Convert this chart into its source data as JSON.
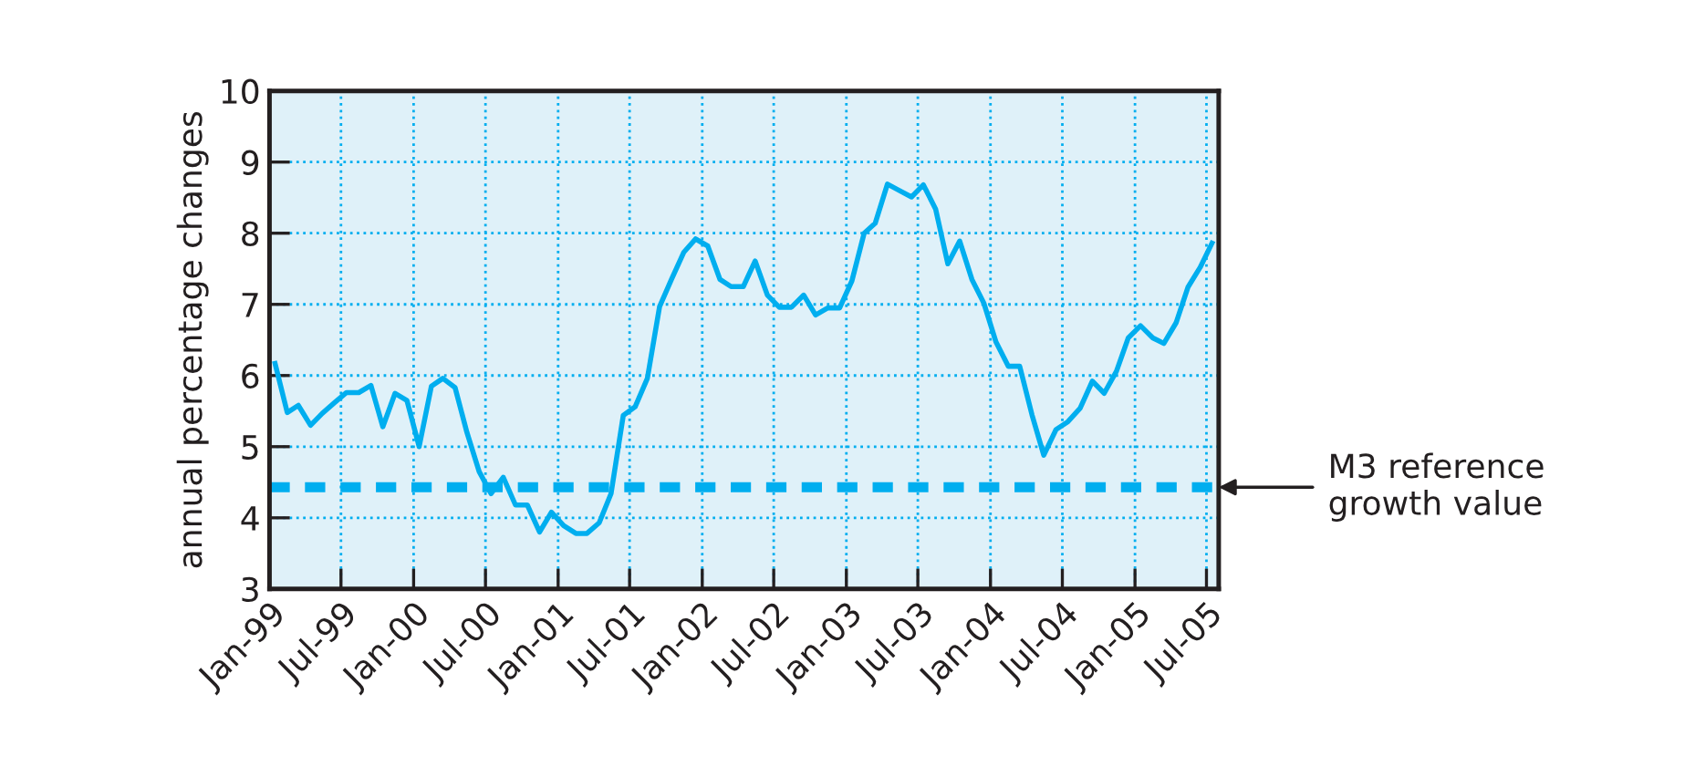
{
  "chart_data": {
    "type": "line",
    "ylabel": "annual percentage changes",
    "x": [
      "1999-01-15",
      "1999-02-15",
      "1999-03-15",
      "1999-04-15",
      "1999-05-15",
      "1999-06-15",
      "1999-07-15",
      "1999-08-15",
      "1999-09-15",
      "1999-10-15",
      "1999-11-15",
      "1999-12-15",
      "2000-01-15",
      "2000-02-15",
      "2000-03-15",
      "2000-04-15",
      "2000-05-15",
      "2000-06-15",
      "2000-07-15",
      "2000-08-15",
      "2000-09-15",
      "2000-10-15",
      "2000-11-15",
      "2000-12-15",
      "2001-01-15",
      "2001-02-15",
      "2001-03-15",
      "2001-04-15",
      "2001-05-15",
      "2001-06-15",
      "2001-07-15",
      "2001-08-15",
      "2001-09-15",
      "2001-10-15",
      "2001-11-15",
      "2001-12-15",
      "2002-01-15",
      "2002-02-15",
      "2002-03-15",
      "2002-04-15",
      "2002-05-15",
      "2002-06-15",
      "2002-07-15",
      "2002-08-15",
      "2002-09-15",
      "2002-10-15",
      "2002-11-15",
      "2002-12-15",
      "2003-01-15",
      "2003-02-15",
      "2003-03-15",
      "2003-04-15",
      "2003-05-15",
      "2003-06-15",
      "2003-07-15",
      "2003-08-15",
      "2003-09-15",
      "2003-10-15",
      "2003-11-15",
      "2003-12-15",
      "2004-01-15",
      "2004-02-15",
      "2004-03-15",
      "2004-04-15",
      "2004-05-15",
      "2004-06-15",
      "2004-07-15",
      "2004-08-15",
      "2004-09-15",
      "2004-10-15",
      "2004-11-15",
      "2004-12-15",
      "2005-01-15",
      "2005-02-15",
      "2005-03-15",
      "2005-04-15",
      "2005-05-15",
      "2005-06-15",
      "2005-07-15"
    ],
    "series": [
      {
        "color": "#00aeef",
        "values": [
          6.17,
          5.48,
          5.58,
          5.3,
          5.47,
          5.62,
          5.76,
          5.76,
          5.86,
          5.28,
          5.75,
          5.65,
          5.0,
          5.85,
          5.96,
          5.83,
          5.2,
          4.65,
          4.34,
          4.57,
          4.18,
          4.18,
          3.8,
          4.08,
          3.89,
          3.78,
          3.78,
          3.93,
          4.34,
          5.44,
          5.56,
          5.96,
          6.97,
          7.35,
          7.73,
          7.92,
          7.82,
          7.35,
          7.25,
          7.25,
          7.61,
          7.13,
          6.96,
          6.96,
          7.13,
          6.85,
          6.95,
          6.95,
          7.33,
          8.0,
          8.14,
          8.69,
          8.6,
          8.51,
          8.68,
          8.34,
          7.57,
          7.89,
          7.35,
          7.02,
          6.47,
          6.13,
          6.13,
          5.45,
          4.88,
          5.24,
          5.35,
          5.54,
          5.92,
          5.75,
          6.06,
          6.53,
          6.7,
          6.53,
          6.45,
          6.74,
          7.24,
          7.52,
          7.86
        ]
      }
    ],
    "xlim": [
      "1999-01-01",
      "2005-08-01"
    ],
    "xticks": [
      {
        "value": "1999-01-01",
        "label": "Jan-99"
      },
      {
        "value": "1999-07-01",
        "label": "Jul-99"
      },
      {
        "value": "2000-01-01",
        "label": "Jan-00"
      },
      {
        "value": "2000-07-01",
        "label": "Jul-00"
      },
      {
        "value": "2001-01-01",
        "label": "Jan-01"
      },
      {
        "value": "2001-07-01",
        "label": "Jul-01"
      },
      {
        "value": "2002-01-01",
        "label": "Jan-02"
      },
      {
        "value": "2002-07-01",
        "label": "Jul-02"
      },
      {
        "value": "2003-01-01",
        "label": "Jan-03"
      },
      {
        "value": "2003-07-01",
        "label": "Jul-03"
      },
      {
        "value": "2004-01-01",
        "label": "Jan-04"
      },
      {
        "value": "2004-07-01",
        "label": "Jul-04"
      },
      {
        "value": "2005-01-01",
        "label": "Jan-05"
      },
      {
        "value": "2005-07-01",
        "label": "Jul-05"
      }
    ],
    "ylim": [
      3,
      10
    ],
    "yticks": [
      3,
      4,
      5,
      6,
      7,
      8,
      9,
      10
    ],
    "grid": true,
    "marker": "none",
    "line_style": "solid",
    "ref_lines": [
      {
        "axis": "y",
        "value": 4.43,
        "label": "M3 reference\ngrowth value",
        "color": "#00aeef",
        "line_style": "dashed"
      }
    ]
  }
}
